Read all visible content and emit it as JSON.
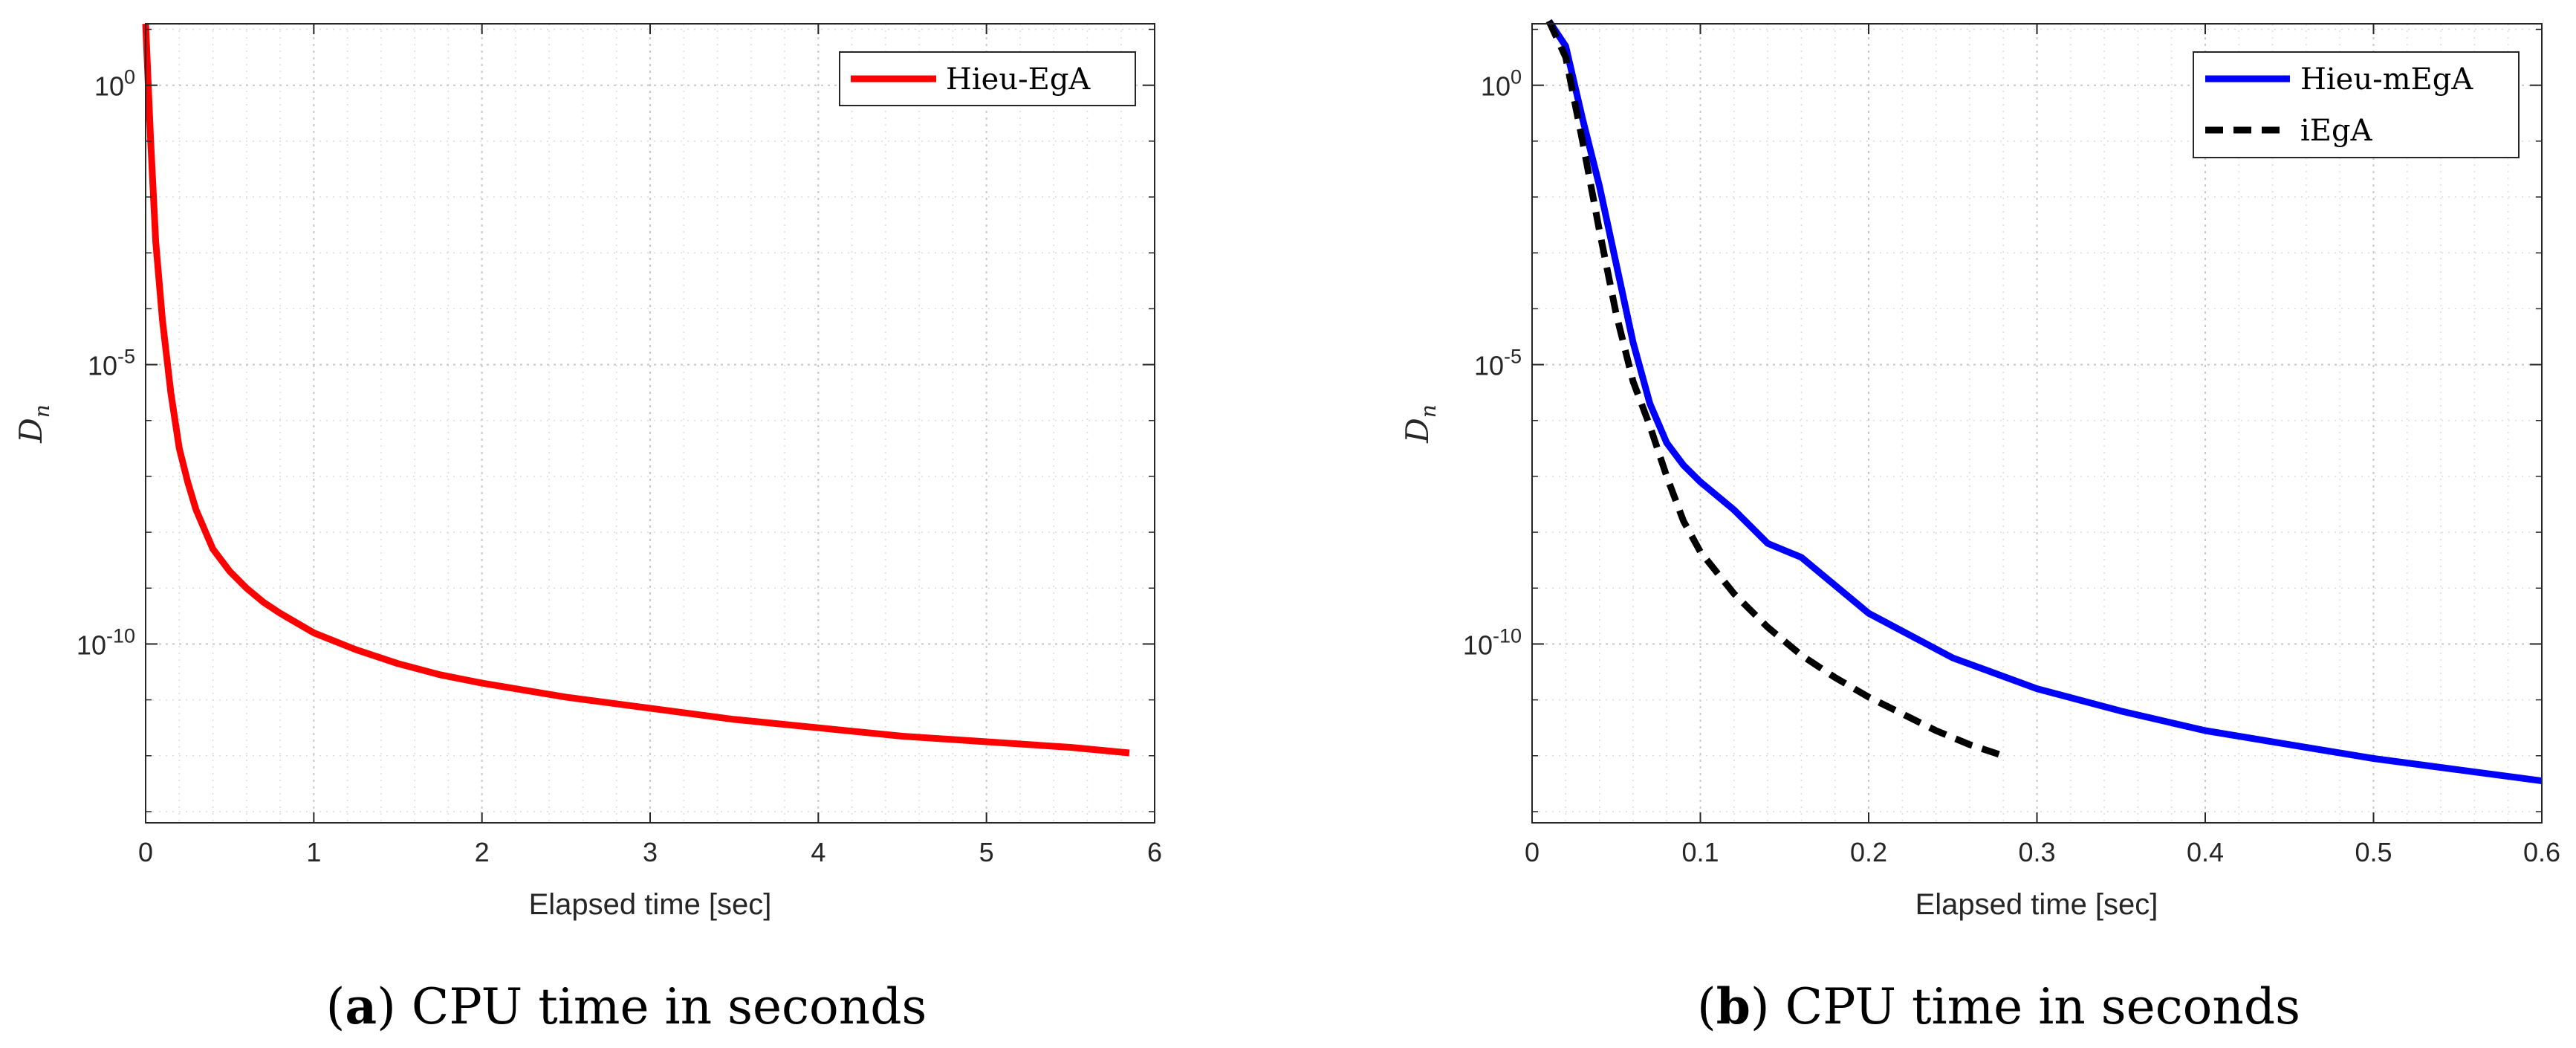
{
  "chart_data": [
    {
      "id": "a",
      "type": "line",
      "caption_letter": "a",
      "caption_text": ") CPU time in seconds",
      "xlabel": "Elapsed time [sec]",
      "ylabel_main": "D",
      "ylabel_sub": "n",
      "xlim": [
        0,
        6
      ],
      "ylim_log10": [
        -13.2,
        1.1
      ],
      "y_scale": "log",
      "grid": true,
      "legend_position": "top-right",
      "x_ticks": [
        0,
        1,
        2,
        3,
        4,
        5,
        6
      ],
      "x_tick_labels": [
        "0",
        "1",
        "2",
        "3",
        "4",
        "5",
        "6"
      ],
      "y_ticks_log10": [
        0,
        -5,
        -10
      ],
      "y_tick_labels": [
        {
          "base": "10",
          "exp": "0"
        },
        {
          "base": "10",
          "exp": "-5"
        },
        {
          "base": "10",
          "exp": "-10"
        }
      ],
      "series": [
        {
          "name": "Hieu-EgA",
          "color": "#ff0000",
          "dash": "solid",
          "points": [
            [
              0,
              1.1
            ],
            [
              0.03,
              -1.0
            ],
            [
              0.06,
              -2.8
            ],
            [
              0.1,
              -4.2
            ],
            [
              0.15,
              -5.5
            ],
            [
              0.2,
              -6.5
            ],
            [
              0.25,
              -7.1
            ],
            [
              0.3,
              -7.6
            ],
            [
              0.4,
              -8.3
            ],
            [
              0.5,
              -8.7
            ],
            [
              0.6,
              -9.0
            ],
            [
              0.7,
              -9.25
            ],
            [
              0.8,
              -9.45
            ],
            [
              1.0,
              -9.8
            ],
            [
              1.25,
              -10.1
            ],
            [
              1.5,
              -10.35
            ],
            [
              1.75,
              -10.55
            ],
            [
              2.0,
              -10.7
            ],
            [
              2.5,
              -10.95
            ],
            [
              3.0,
              -11.15
            ],
            [
              3.5,
              -11.35
            ],
            [
              4.0,
              -11.5
            ],
            [
              4.5,
              -11.65
            ],
            [
              5.0,
              -11.75
            ],
            [
              5.5,
              -11.85
            ],
            [
              5.85,
              -11.95
            ]
          ]
        }
      ]
    },
    {
      "id": "b",
      "type": "line",
      "caption_letter": "b",
      "caption_text": ") CPU time in seconds",
      "xlabel": "Elapsed time [sec]",
      "ylabel_main": "D",
      "ylabel_sub": "n",
      "xlim": [
        0,
        0.6
      ],
      "ylim_log10": [
        -13.2,
        1.1
      ],
      "y_scale": "log",
      "grid": true,
      "legend_position": "top-right",
      "x_ticks": [
        0,
        0.1,
        0.2,
        0.3,
        0.4,
        0.5,
        0.6
      ],
      "x_tick_labels": [
        "0",
        "0.1",
        "0.2",
        "0.3",
        "0.4",
        "0.5",
        "0.6"
      ],
      "y_ticks_log10": [
        0,
        -5,
        -10
      ],
      "y_tick_labels": [
        {
          "base": "10",
          "exp": "0"
        },
        {
          "base": "10",
          "exp": "-5"
        },
        {
          "base": "10",
          "exp": "-10"
        }
      ],
      "series": [
        {
          "name": "Hieu-mEgA",
          "color": "#0000ff",
          "dash": "solid",
          "points": [
            [
              0.01,
              1.15
            ],
            [
              0.02,
              0.7
            ],
            [
              0.03,
              -0.6
            ],
            [
              0.04,
              -1.8
            ],
            [
              0.05,
              -3.2
            ],
            [
              0.06,
              -4.6
            ],
            [
              0.07,
              -5.7
            ],
            [
              0.08,
              -6.4
            ],
            [
              0.09,
              -6.8
            ],
            [
              0.1,
              -7.1
            ],
            [
              0.12,
              -7.6
            ],
            [
              0.14,
              -8.2
            ],
            [
              0.16,
              -8.45
            ],
            [
              0.18,
              -8.95
            ],
            [
              0.2,
              -9.45
            ],
            [
              0.25,
              -10.25
            ],
            [
              0.3,
              -10.8
            ],
            [
              0.35,
              -11.2
            ],
            [
              0.4,
              -11.55
            ],
            [
              0.45,
              -11.8
            ],
            [
              0.5,
              -12.05
            ],
            [
              0.55,
              -12.25
            ],
            [
              0.6,
              -12.45
            ]
          ]
        },
        {
          "name": "iEgA",
          "color": "#000000",
          "dash": "dashed",
          "points": [
            [
              0.01,
              1.15
            ],
            [
              0.02,
              0.5
            ],
            [
              0.03,
              -1.0
            ],
            [
              0.04,
              -2.6
            ],
            [
              0.05,
              -4.1
            ],
            [
              0.06,
              -5.3
            ],
            [
              0.07,
              -6.1
            ],
            [
              0.08,
              -7.0
            ],
            [
              0.09,
              -7.8
            ],
            [
              0.1,
              -8.35
            ],
            [
              0.12,
              -9.1
            ],
            [
              0.14,
              -9.7
            ],
            [
              0.16,
              -10.2
            ],
            [
              0.18,
              -10.6
            ],
            [
              0.2,
              -10.95
            ],
            [
              0.22,
              -11.25
            ],
            [
              0.24,
              -11.55
            ],
            [
              0.26,
              -11.8
            ],
            [
              0.28,
              -12.0
            ]
          ]
        }
      ]
    }
  ]
}
